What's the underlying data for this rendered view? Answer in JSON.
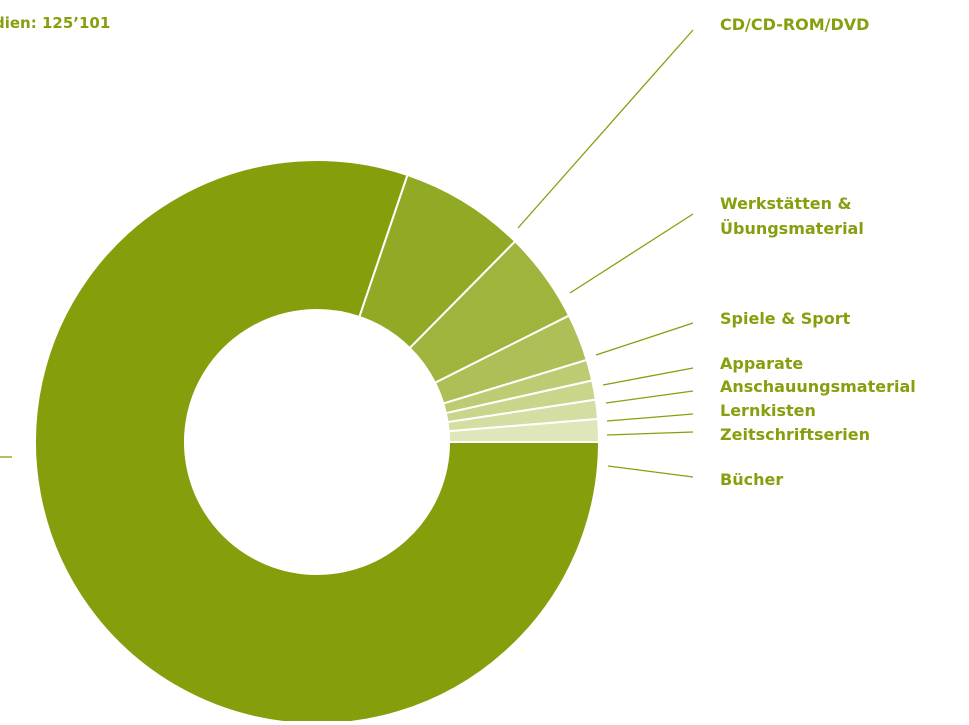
{
  "header": {
    "total_text": "dien: 125’101"
  },
  "chart_data": {
    "type": "pie",
    "donut": true,
    "categories": [
      "Bücher",
      "CD/CD-ROM/DVD",
      "Werkstätten & Übungsmaterial",
      "Spiele & Sport",
      "Apparate",
      "Anschauungsmaterial",
      "Lernkisten",
      "Zeitschriftserien"
    ],
    "values": [
      80.2,
      7.2,
      5.2,
      2.7,
      1.2,
      1.1,
      1.1,
      1.3
    ],
    "colors": [
      "#859f0c",
      "#91aa25",
      "#9fb43d",
      "#aebf57",
      "#bdcb72",
      "#c9d58a",
      "#d4dea2",
      "#dfe7ba"
    ],
    "label_color": "#85a00e"
  }
}
